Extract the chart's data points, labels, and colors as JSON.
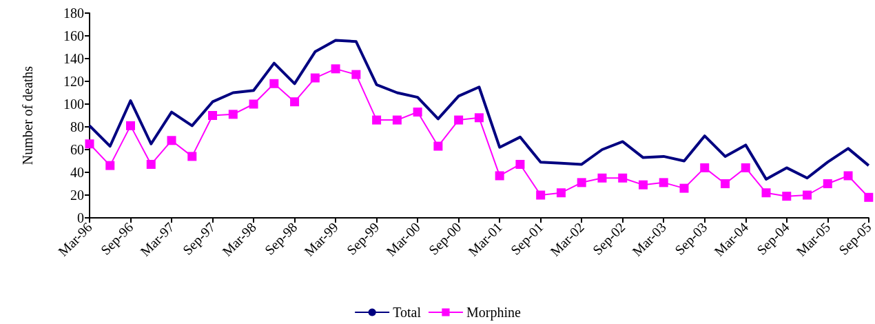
{
  "chart_data": {
    "type": "line",
    "ylabel": "Number of deaths",
    "categories": [
      "Mar-96",
      null,
      "Sep-96",
      null,
      "Mar-97",
      null,
      "Sep-97",
      null,
      "Mar-98",
      null,
      "Sep-98",
      null,
      "Mar-99",
      null,
      "Sep-99",
      null,
      "Mar-00",
      null,
      "Sep-00",
      null,
      "Mar-01",
      null,
      "Sep-01",
      null,
      "Mar-02",
      null,
      "Sep-02",
      null,
      "Mar-03",
      null,
      "Sep-03",
      null,
      "Mar-04",
      null,
      "Sep-04",
      null,
      "Mar-05",
      null,
      "Sep-05"
    ],
    "series": [
      {
        "name": "Total",
        "color": "#000080",
        "marker": "none",
        "values": [
          81,
          63,
          103,
          65,
          93,
          81,
          102,
          110,
          112,
          136,
          118,
          146,
          156,
          155,
          117,
          110,
          106,
          87,
          107,
          115,
          62,
          71,
          49,
          48,
          47,
          60,
          67,
          53,
          54,
          50,
          72,
          54,
          64,
          34,
          44,
          35,
          49,
          61,
          46
        ]
      },
      {
        "name": "Morphine",
        "color": "#ff00ff",
        "marker": "square",
        "values": [
          65,
          46,
          81,
          47,
          68,
          54,
          90,
          91,
          100,
          118,
          102,
          123,
          131,
          126,
          86,
          86,
          93,
          63,
          86,
          88,
          37,
          47,
          20,
          22,
          31,
          35,
          35,
          29,
          31,
          26,
          44,
          30,
          44,
          22,
          19,
          20,
          30,
          37,
          18
        ]
      }
    ],
    "ylim": [
      0,
      180
    ],
    "yticks": [
      0,
      20,
      40,
      60,
      80,
      100,
      120,
      140,
      160,
      180
    ],
    "grid": false,
    "legend": "bottom",
    "line_style": "solid"
  }
}
